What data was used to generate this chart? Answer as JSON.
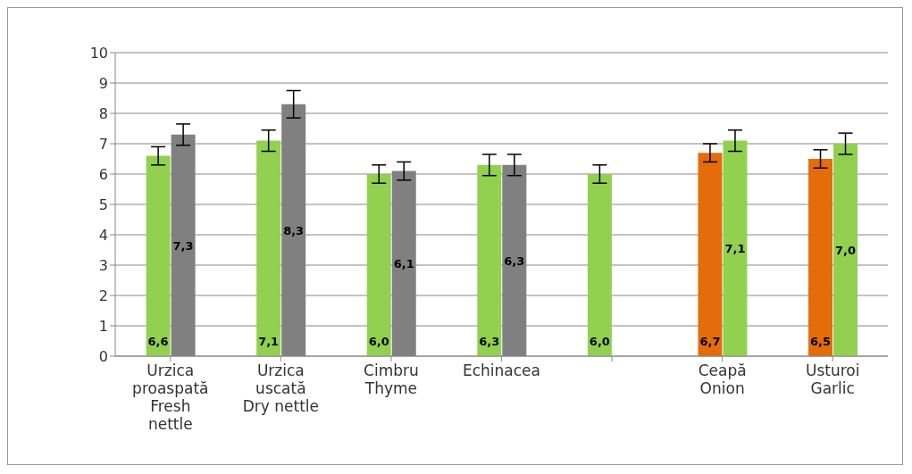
{
  "chart_data": {
    "type": "bar",
    "categories": [
      "Urzica\nproaspată\nFresh\nnettle",
      "Urzica\nuscată\nDry nettle",
      "Cimbru\nThyme",
      "Echinacea",
      null,
      "Ceapă\nOnion",
      "Usturoi\nGarlic"
    ],
    "series": [
      {
        "values": [
          6.6,
          7.1,
          6.0,
          6.3,
          6.0,
          6.7,
          6.5
        ],
        "colors": [
          "#92d050",
          "#92d050",
          "#92d050",
          "#92d050",
          "#92d050",
          "#e46c0a",
          "#e46c0a"
        ],
        "errors": [
          0.3,
          0.35,
          0.3,
          0.35,
          0.3,
          0.3,
          0.3
        ],
        "value_labels": [
          "6,6",
          "7,1",
          "6,0",
          "6,3",
          "6,0",
          "6,7",
          "6,5"
        ]
      },
      {
        "values": [
          7.3,
          8.3,
          6.1,
          6.3,
          null,
          7.1,
          7.0
        ],
        "colors": [
          "#808080",
          "#808080",
          "#808080",
          "#808080",
          "#808080",
          "#92d050",
          "#92d050"
        ],
        "errors": [
          0.35,
          0.45,
          0.3,
          0.35,
          null,
          0.35,
          0.35
        ],
        "value_labels": [
          "7,3",
          "8,3",
          "6,1",
          "6,3",
          null,
          "7,1",
          "7,0"
        ]
      }
    ],
    "ylim": [
      0,
      10
    ],
    "yticks": [
      0,
      1,
      2,
      3,
      4,
      5,
      6,
      7,
      8,
      9,
      10
    ],
    "grid": "y",
    "legend": false
  }
}
